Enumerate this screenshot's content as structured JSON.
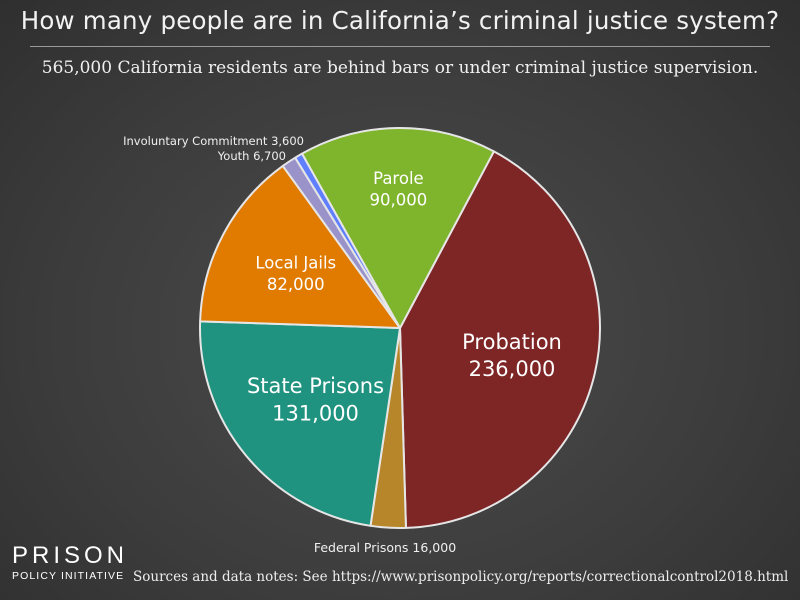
{
  "title": "How many people are in California’s criminal justice system?",
  "subtitle": "565,000 California residents are behind bars or under criminal justice supervision.",
  "logo": {
    "top": "PRISON",
    "bottom": "POLICY INITIATIVE"
  },
  "sources": "Sources and data notes: See https://www.prisonpolicy.org/reports/correctionalcontrol2018.html",
  "colors": {
    "probation": "#7e2526",
    "federal": "#b8862a",
    "state": "#1f937f",
    "jails": "#e07b00",
    "youth": "#9a93c9",
    "commitment": "#5f7fff",
    "parole": "#7fb42d"
  },
  "chart_data": {
    "type": "pie",
    "title": "How many people are in California’s criminal justice system?",
    "total": 565000,
    "start_angle_deg": 28,
    "direction": "clockwise",
    "slices": [
      {
        "key": "probation",
        "name": "Probation",
        "value_label": "236,000",
        "value": 236000
      },
      {
        "key": "federal",
        "name": "Federal Prisons",
        "value_label": "16,000",
        "value": 16000
      },
      {
        "key": "state",
        "name": "State Prisons",
        "value_label": "131,000",
        "value": 131000
      },
      {
        "key": "jails",
        "name": "Local Jails",
        "value_label": "82,000",
        "value": 82000
      },
      {
        "key": "youth",
        "name": "Youth",
        "value_label": "6,700",
        "value": 6700
      },
      {
        "key": "commitment",
        "name": "Involuntary Commitment",
        "value_label": "3,600",
        "value": 3600
      },
      {
        "key": "parole",
        "name": "Parole",
        "value_label": "90,000",
        "value": 90000
      }
    ]
  }
}
